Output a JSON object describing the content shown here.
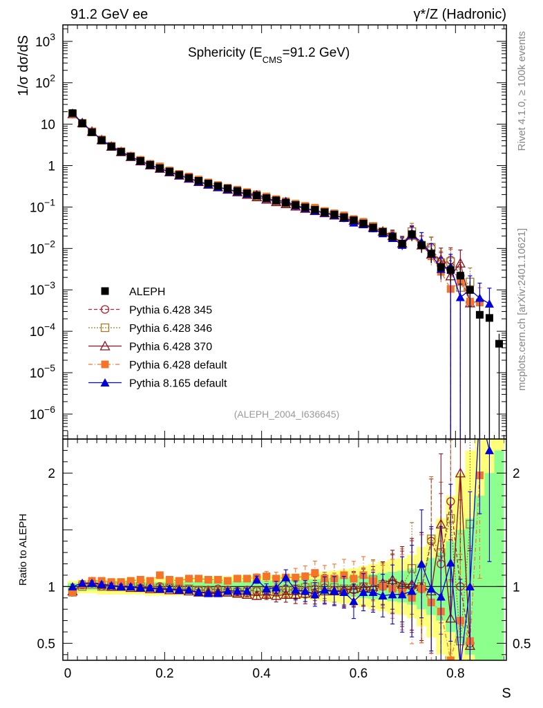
{
  "header": {
    "left": "91.2 GeV ee",
    "right": "γ*/Z (Hadronic)"
  },
  "side_labels": {
    "top": "Rivet 4.1.0, ≥ 100k events",
    "bottom": "mcplots.cern.ch [arXiv:2401.10621]"
  },
  "colors": {
    "aleph": "#000000",
    "p345": "#b22235",
    "p346": "#a27a2a",
    "p370": "#8b0f1a",
    "pdef": "#f4742a",
    "p8": "#0000dd",
    "band_yellow": "#ffff7a",
    "band_green": "#8cff8c"
  },
  "chart_data": {
    "type": "line",
    "title": "Sphericity (E_CMS=91.2 GeV)",
    "title_main": "Sphericity (E",
    "title_sub": "CMS",
    "title_end": "=91.2 GeV)",
    "analysis": "(ALEPH_2004_I636645)",
    "xlabel": "S",
    "ylabel": "1/σ  dσ/dS",
    "ratio_ylabel": "Ratio to ALEPH",
    "xlim": [
      -0.01,
      0.905
    ],
    "ylim": [
      2.5e-07,
      2500
    ],
    "ratio_ylim": [
      0.35,
      2.3
    ],
    "x_ticks": [
      {
        "v": 0,
        "label": "0"
      },
      {
        "v": 0.2,
        "label": "0.2"
      },
      {
        "v": 0.4,
        "label": "0.4"
      },
      {
        "v": 0.6,
        "label": "0.6"
      },
      {
        "v": 0.8,
        "label": "0.8"
      }
    ],
    "y_ticks": [
      {
        "v": 1000.0,
        "b": "10",
        "e": "3"
      },
      {
        "v": 100.0,
        "b": "10",
        "e": "2"
      },
      {
        "v": 10,
        "b": "10",
        "e": ""
      },
      {
        "v": 1,
        "b": "1",
        "e": ""
      },
      {
        "v": 0.1,
        "b": "10",
        "e": "−1"
      },
      {
        "v": 0.01,
        "b": "10",
        "e": "−2"
      },
      {
        "v": 0.001,
        "b": "10",
        "e": "−3"
      },
      {
        "v": 0.0001,
        "b": "10",
        "e": "−4"
      },
      {
        "v": 1e-05,
        "b": "10",
        "e": "−5"
      },
      {
        "v": 1e-06,
        "b": "10",
        "e": "−6"
      }
    ],
    "ratio_ticks": [
      {
        "v": 0.5,
        "label": "0.5"
      },
      {
        "v": 1,
        "label": "1"
      },
      {
        "v": 2,
        "label": "2"
      }
    ],
    "x": [
      0.01,
      0.03,
      0.05,
      0.07,
      0.09,
      0.11,
      0.13,
      0.15,
      0.17,
      0.19,
      0.21,
      0.23,
      0.25,
      0.27,
      0.29,
      0.31,
      0.33,
      0.35,
      0.37,
      0.39,
      0.41,
      0.43,
      0.45,
      0.47,
      0.49,
      0.51,
      0.53,
      0.55,
      0.57,
      0.59,
      0.61,
      0.63,
      0.65,
      0.67,
      0.69,
      0.71,
      0.73,
      0.75,
      0.77,
      0.79,
      0.81,
      0.83,
      0.85,
      0.87,
      0.89
    ],
    "aleph_values": [
      18.5,
      10.5,
      6.4,
      4.1,
      2.9,
      2.15,
      1.65,
      1.3,
      1.05,
      0.87,
      0.72,
      0.6,
      0.51,
      0.43,
      0.37,
      0.32,
      0.28,
      0.245,
      0.215,
      0.19,
      0.165,
      0.145,
      0.128,
      0.112,
      0.098,
      0.086,
      0.075,
      0.066,
      0.057,
      0.048,
      0.04,
      0.032,
      0.025,
      0.019,
      0.013,
      0.022,
      0.012,
      0.0075,
      0.0035,
      0.003,
      0.0022,
      0.001,
      0.00025,
      0.00021,
      5e-05
    ],
    "ratio_band": {
      "yellow": [
        0.05,
        0.06,
        0.06,
        0.07,
        0.07,
        0.07,
        0.07,
        0.07,
        0.08,
        0.08,
        0.08,
        0.08,
        0.08,
        0.09,
        0.09,
        0.09,
        0.09,
        0.1,
        0.1,
        0.1,
        0.1,
        0.1,
        0.11,
        0.11,
        0.11,
        0.12,
        0.13,
        0.14,
        0.15,
        0.16,
        0.18,
        0.2,
        0.22,
        0.24,
        0.25,
        0.28,
        0.35,
        0.45,
        0.6,
        0.8,
        1.0,
        1.2,
        1.4,
        1.6,
        1.8
      ],
      "green": [
        0.03,
        0.03,
        0.03,
        0.035,
        0.035,
        0.035,
        0.04,
        0.04,
        0.04,
        0.04,
        0.04,
        0.045,
        0.045,
        0.045,
        0.05,
        0.05,
        0.05,
        0.05,
        0.05,
        0.055,
        0.055,
        0.055,
        0.06,
        0.06,
        0.06,
        0.065,
        0.07,
        0.075,
        0.08,
        0.09,
        0.1,
        0.11,
        0.12,
        0.13,
        0.14,
        0.16,
        0.2,
        0.25,
        0.3,
        0.4,
        0.5,
        0.6,
        0.8,
        1.0,
        1.2
      ]
    },
    "series": [
      {
        "name": "Pythia 6.428 345",
        "key": "p345",
        "marker": "circle",
        "dash": "5,3",
        "ratio": [
          0.95,
          1.02,
          1.03,
          1.0,
          1.0,
          1.01,
          1.0,
          0.99,
          1.0,
          1.0,
          0.99,
          0.98,
          0.98,
          0.97,
          0.97,
          0.98,
          0.97,
          0.96,
          0.97,
          0.96,
          0.95,
          0.97,
          0.98,
          0.96,
          0.96,
          0.98,
          0.99,
          0.97,
          0.96,
          0.97,
          1.0,
          0.97,
          1.0,
          1.02,
          0.98,
          1.0,
          0.98,
          1.4,
          1.2,
          1.75,
          1.0,
          0.5,
          null,
          null,
          null
        ]
      },
      {
        "name": "Pythia 6.428 346",
        "key": "p346",
        "marker": "square",
        "dash": "2,2",
        "ratio": [
          0.95,
          1.0,
          1.02,
          1.0,
          1.0,
          1.0,
          1.0,
          1.0,
          0.99,
          0.99,
          0.99,
          0.98,
          0.98,
          0.97,
          0.96,
          0.96,
          0.95,
          0.95,
          0.95,
          0.96,
          0.96,
          0.97,
          0.97,
          0.98,
          0.99,
          1.0,
          1.01,
          0.99,
          0.98,
          0.98,
          1.0,
          1.06,
          1.02,
          1.03,
          1.0,
          1.16,
          1.0,
          1.42,
          1.3,
          1.6,
          0.52,
          1.55,
          null,
          null,
          null
        ]
      },
      {
        "name": "Pythia 6.428 370",
        "key": "p370",
        "marker": "triangle-open",
        "dash": "",
        "ratio": [
          0.96,
          1.02,
          1.04,
          1.02,
          1.0,
          1.0,
          0.99,
          0.99,
          0.98,
          0.98,
          0.97,
          0.97,
          0.96,
          0.95,
          0.95,
          0.95,
          0.95,
          0.94,
          0.93,
          0.92,
          0.93,
          0.92,
          0.93,
          0.93,
          0.94,
          0.95,
          0.96,
          0.96,
          0.97,
          0.98,
          0.99,
          1.0,
          1.03,
          1.06,
          1.02,
          1.02,
          1.0,
          0.96,
          1.55,
          0.72,
          2.0,
          0.48,
          null,
          null,
          null
        ]
      },
      {
        "name": "Pythia 6.428 default",
        "key": "pdef",
        "marker": "square-filled",
        "dash": "6,3,1,3",
        "ratio": [
          0.95,
          1.02,
          1.05,
          1.05,
          1.04,
          1.04,
          1.05,
          1.06,
          1.05,
          1.1,
          1.06,
          1.05,
          1.07,
          1.07,
          1.06,
          1.06,
          1.05,
          1.07,
          1.07,
          1.08,
          1.09,
          1.07,
          1.08,
          1.08,
          1.09,
          1.12,
          1.07,
          1.07,
          1.1,
          1.07,
          1.1,
          1.05,
          1.0,
          0.98,
          0.95,
          0.9,
          0.98,
          0.86,
          0.78,
          0.35,
          0.7,
          0.52,
          1.98,
          null,
          null
        ]
      },
      {
        "name": "Pythia 8.165 default",
        "key": "p8",
        "marker": "triangle-filled",
        "dash": "",
        "ratio": [
          1.0,
          1.03,
          1.03,
          1.02,
          1.01,
          1.0,
          1.0,
          0.99,
          0.99,
          0.98,
          0.98,
          0.97,
          0.97,
          0.95,
          0.94,
          0.94,
          0.96,
          0.96,
          0.96,
          1.06,
          0.98,
          0.99,
          1.08,
          0.97,
          0.96,
          0.93,
          0.97,
          0.96,
          0.95,
          0.87,
          0.95,
          0.95,
          0.92,
          0.93,
          0.93,
          0.96,
          1.2,
          0.98,
          0.91,
          1.21,
          0.3,
          1.0,
          2.55,
          2.2,
          null
        ]
      }
    ],
    "legend": [
      {
        "name": "ALEPH",
        "key": "aleph",
        "marker": "square-filled",
        "dash": "none"
      },
      {
        "name": "Pythia 6.428 345",
        "key": "p345",
        "marker": "circle",
        "dash": "5,3"
      },
      {
        "name": "Pythia 6.428 346",
        "key": "p346",
        "marker": "square",
        "dash": "2,2"
      },
      {
        "name": "Pythia 6.428 370",
        "key": "p370",
        "marker": "triangle-open",
        "dash": ""
      },
      {
        "name": "Pythia 6.428 default",
        "key": "pdef",
        "marker": "square-filled",
        "dash": "6,3,1,3"
      },
      {
        "name": "Pythia 8.165 default",
        "key": "p8",
        "marker": "triangle-filled",
        "dash": ""
      }
    ]
  }
}
